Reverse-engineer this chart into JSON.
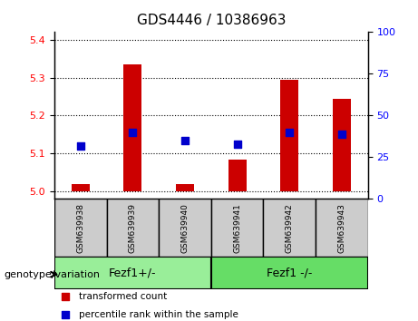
{
  "title": "GDS4446 / 10386963",
  "samples": [
    "GSM639938",
    "GSM639939",
    "GSM639940",
    "GSM639941",
    "GSM639942",
    "GSM639943"
  ],
  "transformed_count": [
    5.02,
    5.335,
    5.02,
    5.085,
    5.295,
    5.245
  ],
  "percentile_rank": [
    32,
    40,
    35,
    33,
    40,
    39
  ],
  "ylim_left": [
    4.98,
    5.42
  ],
  "ylim_right": [
    0,
    100
  ],
  "yticks_left": [
    5.0,
    5.1,
    5.2,
    5.3,
    5.4
  ],
  "yticks_right": [
    0,
    25,
    50,
    75,
    100
  ],
  "bar_color": "#cc0000",
  "dot_color": "#0000cc",
  "grid_color": "#000000",
  "groups": [
    {
      "label": "Fezf1+/-",
      "samples": [
        "GSM639938",
        "GSM639939",
        "GSM639940"
      ],
      "color": "#99ee99"
    },
    {
      "label": "Fezf1 -/-",
      "samples": [
        "GSM639941",
        "GSM639942",
        "GSM639943"
      ],
      "color": "#66dd66"
    }
  ],
  "xlabel_group": "genotype/variation",
  "legend_items": [
    {
      "label": "transformed count",
      "color": "#cc0000"
    },
    {
      "label": "percentile rank within the sample",
      "color": "#0000cc"
    }
  ],
  "bar_baseline": 5.0,
  "dot_size": 40
}
